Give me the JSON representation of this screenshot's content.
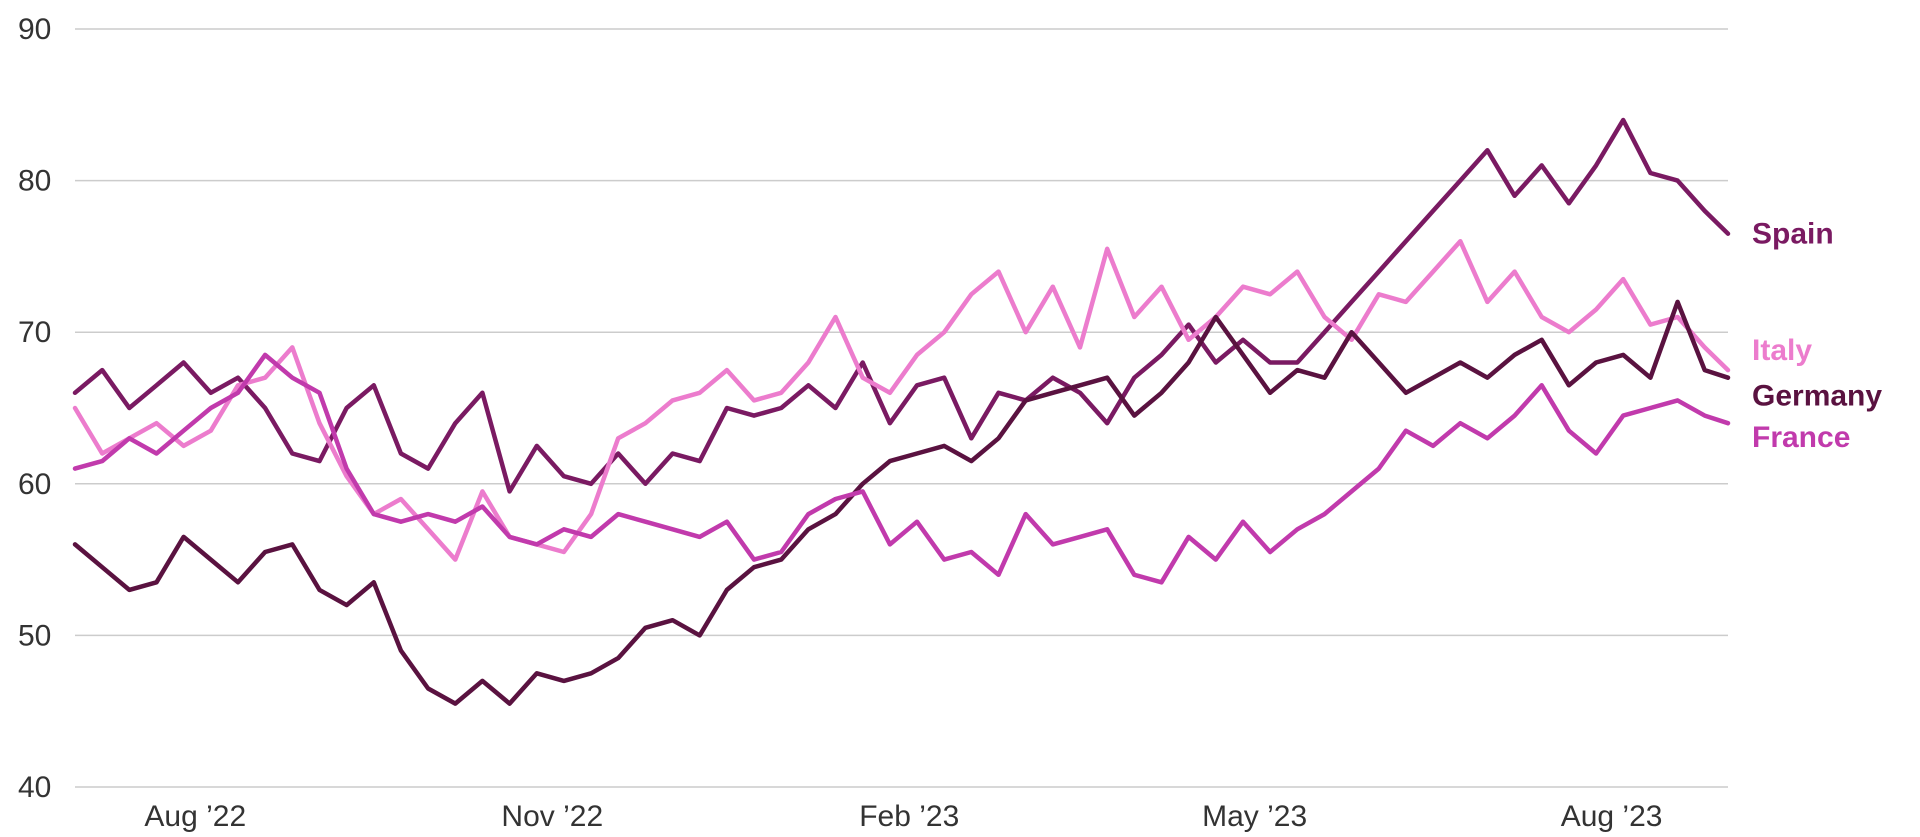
{
  "chart_data": {
    "type": "line",
    "title": "",
    "xlabel": "",
    "ylabel": "",
    "ylim": [
      40,
      90
    ],
    "yticks": [
      "40",
      "50",
      "60",
      "70",
      "80",
      "90"
    ],
    "xticks": [
      {
        "label": "Aug ’22",
        "x": "2022-08-01"
      },
      {
        "label": "Nov ’22",
        "x": "2022-11-01"
      },
      {
        "label": "Feb ’23",
        "x": "2023-02-01"
      },
      {
        "label": "May ’23",
        "x": "2023-05-01"
      },
      {
        "label": "Aug ’23",
        "x": "2023-08-01"
      }
    ],
    "xlim": [
      "2022-07-01",
      "2023-08-31"
    ],
    "grid": true,
    "legend": "direct labels at line ends (right)",
    "series": [
      {
        "name": "Spain",
        "color": "#7a1a62",
        "points": [
          [
            "2022-07-01",
            66
          ],
          [
            "2022-07-08",
            67.5
          ],
          [
            "2022-07-15",
            65
          ],
          [
            "2022-07-22",
            66.5
          ],
          [
            "2022-07-29",
            68
          ],
          [
            "2022-08-05",
            66
          ],
          [
            "2022-08-12",
            67
          ],
          [
            "2022-08-19",
            65
          ],
          [
            "2022-08-26",
            62
          ],
          [
            "2022-09-02",
            61.5
          ],
          [
            "2022-09-09",
            65
          ],
          [
            "2022-09-16",
            66.5
          ],
          [
            "2022-09-23",
            62
          ],
          [
            "2022-09-30",
            61
          ],
          [
            "2022-10-07",
            64
          ],
          [
            "2022-10-14",
            66
          ],
          [
            "2022-10-21",
            59.5
          ],
          [
            "2022-10-28",
            62.5
          ],
          [
            "2022-11-04",
            60.5
          ],
          [
            "2022-11-11",
            60
          ],
          [
            "2022-11-18",
            62
          ],
          [
            "2022-11-25",
            60
          ],
          [
            "2022-12-02",
            62
          ],
          [
            "2022-12-09",
            61.5
          ],
          [
            "2022-12-16",
            65
          ],
          [
            "2022-12-23",
            64.5
          ],
          [
            "2022-12-30",
            65
          ],
          [
            "2023-01-06",
            66.5
          ],
          [
            "2023-01-13",
            65
          ],
          [
            "2023-01-20",
            68
          ],
          [
            "2023-01-27",
            64
          ],
          [
            "2023-02-03",
            66.5
          ],
          [
            "2023-02-10",
            67
          ],
          [
            "2023-02-17",
            63
          ],
          [
            "2023-02-24",
            66
          ],
          [
            "2023-03-03",
            65.5
          ],
          [
            "2023-03-10",
            67
          ],
          [
            "2023-03-17",
            66
          ],
          [
            "2023-03-24",
            64
          ],
          [
            "2023-03-31",
            67
          ],
          [
            "2023-04-07",
            68.5
          ],
          [
            "2023-04-14",
            70.5
          ],
          [
            "2023-04-21",
            68
          ],
          [
            "2023-04-28",
            69.5
          ],
          [
            "2023-05-05",
            68
          ],
          [
            "2023-05-12",
            68
          ],
          [
            "2023-05-19",
            70
          ],
          [
            "2023-05-26",
            72
          ],
          [
            "2023-06-02",
            74
          ],
          [
            "2023-06-09",
            76
          ],
          [
            "2023-06-16",
            78
          ],
          [
            "2023-06-23",
            80
          ],
          [
            "2023-06-30",
            82
          ],
          [
            "2023-07-07",
            79
          ],
          [
            "2023-07-14",
            81
          ],
          [
            "2023-07-21",
            78.5
          ],
          [
            "2023-07-28",
            81
          ],
          [
            "2023-08-04",
            84
          ],
          [
            "2023-08-11",
            80.5
          ],
          [
            "2023-08-18",
            80
          ],
          [
            "2023-08-25",
            78
          ],
          [
            "2023-08-31",
            76.5
          ]
        ]
      },
      {
        "name": "Italy",
        "color": "#ec7ccd",
        "points": [
          [
            "2022-07-01",
            65
          ],
          [
            "2022-07-08",
            62
          ],
          [
            "2022-07-15",
            63
          ],
          [
            "2022-07-22",
            64
          ],
          [
            "2022-07-29",
            62.5
          ],
          [
            "2022-08-05",
            63.5
          ],
          [
            "2022-08-12",
            66.5
          ],
          [
            "2022-08-19",
            67
          ],
          [
            "2022-08-26",
            69
          ],
          [
            "2022-09-02",
            64
          ],
          [
            "2022-09-09",
            60.5
          ],
          [
            "2022-09-16",
            58
          ],
          [
            "2022-09-23",
            59
          ],
          [
            "2022-09-30",
            57
          ],
          [
            "2022-10-07",
            55
          ],
          [
            "2022-10-14",
            59.5
          ],
          [
            "2022-10-21",
            56.5
          ],
          [
            "2022-10-28",
            56
          ],
          [
            "2022-11-04",
            55.5
          ],
          [
            "2022-11-11",
            58
          ],
          [
            "2022-11-18",
            63
          ],
          [
            "2022-11-25",
            64
          ],
          [
            "2022-12-02",
            65.5
          ],
          [
            "2022-12-09",
            66
          ],
          [
            "2022-12-16",
            67.5
          ],
          [
            "2022-12-23",
            65.5
          ],
          [
            "2022-12-30",
            66
          ],
          [
            "2023-01-06",
            68
          ],
          [
            "2023-01-13",
            71
          ],
          [
            "2023-01-20",
            67
          ],
          [
            "2023-01-27",
            66
          ],
          [
            "2023-02-03",
            68.5
          ],
          [
            "2023-02-10",
            70
          ],
          [
            "2023-02-17",
            72.5
          ],
          [
            "2023-02-24",
            74
          ],
          [
            "2023-03-03",
            70
          ],
          [
            "2023-03-10",
            73
          ],
          [
            "2023-03-17",
            69
          ],
          [
            "2023-03-24",
            75.5
          ],
          [
            "2023-03-31",
            71
          ],
          [
            "2023-04-07",
            73
          ],
          [
            "2023-04-14",
            69.5
          ],
          [
            "2023-04-21",
            71
          ],
          [
            "2023-04-28",
            73
          ],
          [
            "2023-05-05",
            72.5
          ],
          [
            "2023-05-12",
            74
          ],
          [
            "2023-05-19",
            71
          ],
          [
            "2023-05-26",
            69.5
          ],
          [
            "2023-06-02",
            72.5
          ],
          [
            "2023-06-09",
            72
          ],
          [
            "2023-06-16",
            74
          ],
          [
            "2023-06-23",
            76
          ],
          [
            "2023-06-30",
            72
          ],
          [
            "2023-07-07",
            74
          ],
          [
            "2023-07-14",
            71
          ],
          [
            "2023-07-21",
            70
          ],
          [
            "2023-07-28",
            71.5
          ],
          [
            "2023-08-04",
            73.5
          ],
          [
            "2023-08-11",
            70.5
          ],
          [
            "2023-08-18",
            71
          ],
          [
            "2023-08-25",
            69
          ],
          [
            "2023-08-31",
            67.5
          ]
        ]
      },
      {
        "name": "Germany",
        "color": "#5a1240",
        "points": [
          [
            "2022-07-01",
            56
          ],
          [
            "2022-07-08",
            54.5
          ],
          [
            "2022-07-15",
            53
          ],
          [
            "2022-07-22",
            53.5
          ],
          [
            "2022-07-29",
            56.5
          ],
          [
            "2022-08-05",
            55
          ],
          [
            "2022-08-12",
            53.5
          ],
          [
            "2022-08-19",
            55.5
          ],
          [
            "2022-08-26",
            56
          ],
          [
            "2022-09-02",
            53
          ],
          [
            "2022-09-09",
            52
          ],
          [
            "2022-09-16",
            53.5
          ],
          [
            "2022-09-23",
            49
          ],
          [
            "2022-09-30",
            46.5
          ],
          [
            "2022-10-07",
            45.5
          ],
          [
            "2022-10-14",
            47
          ],
          [
            "2022-10-21",
            45.5
          ],
          [
            "2022-10-28",
            47.5
          ],
          [
            "2022-11-04",
            47
          ],
          [
            "2022-11-11",
            47.5
          ],
          [
            "2022-11-18",
            48.5
          ],
          [
            "2022-11-25",
            50.5
          ],
          [
            "2022-12-02",
            51
          ],
          [
            "2022-12-09",
            50
          ],
          [
            "2022-12-16",
            53
          ],
          [
            "2022-12-23",
            54.5
          ],
          [
            "2022-12-30",
            55
          ],
          [
            "2023-01-06",
            57
          ],
          [
            "2023-01-13",
            58
          ],
          [
            "2023-01-20",
            60
          ],
          [
            "2023-01-27",
            61.5
          ],
          [
            "2023-02-03",
            62
          ],
          [
            "2023-02-10",
            62.5
          ],
          [
            "2023-02-17",
            61.5
          ],
          [
            "2023-02-24",
            63
          ],
          [
            "2023-03-03",
            65.5
          ],
          [
            "2023-03-10",
            66
          ],
          [
            "2023-03-17",
            66.5
          ],
          [
            "2023-03-24",
            67
          ],
          [
            "2023-03-31",
            64.5
          ],
          [
            "2023-04-07",
            66
          ],
          [
            "2023-04-14",
            68
          ],
          [
            "2023-04-21",
            71
          ],
          [
            "2023-04-28",
            68.5
          ],
          [
            "2023-05-05",
            66
          ],
          [
            "2023-05-12",
            67.5
          ],
          [
            "2023-05-19",
            67
          ],
          [
            "2023-05-26",
            70
          ],
          [
            "2023-06-02",
            68
          ],
          [
            "2023-06-09",
            66
          ],
          [
            "2023-06-16",
            67
          ],
          [
            "2023-06-23",
            68
          ],
          [
            "2023-06-30",
            67
          ],
          [
            "2023-07-07",
            68.5
          ],
          [
            "2023-07-14",
            69.5
          ],
          [
            "2023-07-21",
            66.5
          ],
          [
            "2023-07-28",
            68
          ],
          [
            "2023-08-04",
            68.5
          ],
          [
            "2023-08-11",
            67
          ],
          [
            "2023-08-18",
            72
          ],
          [
            "2023-08-25",
            67.5
          ],
          [
            "2023-08-31",
            67
          ]
        ]
      },
      {
        "name": "France",
        "color": "#c13aac",
        "points": [
          [
            "2022-07-01",
            61
          ],
          [
            "2022-07-08",
            61.5
          ],
          [
            "2022-07-15",
            63
          ],
          [
            "2022-07-22",
            62
          ],
          [
            "2022-07-29",
            63.5
          ],
          [
            "2022-08-05",
            65
          ],
          [
            "2022-08-12",
            66
          ],
          [
            "2022-08-19",
            68.5
          ],
          [
            "2022-08-26",
            67
          ],
          [
            "2022-09-02",
            66
          ],
          [
            "2022-09-09",
            61
          ],
          [
            "2022-09-16",
            58
          ],
          [
            "2022-09-23",
            57.5
          ],
          [
            "2022-09-30",
            58
          ],
          [
            "2022-10-07",
            57.5
          ],
          [
            "2022-10-14",
            58.5
          ],
          [
            "2022-10-21",
            56.5
          ],
          [
            "2022-10-28",
            56
          ],
          [
            "2022-11-04",
            57
          ],
          [
            "2022-11-11",
            56.5
          ],
          [
            "2022-11-18",
            58
          ],
          [
            "2022-11-25",
            57.5
          ],
          [
            "2022-12-02",
            57
          ],
          [
            "2022-12-09",
            56.5
          ],
          [
            "2022-12-16",
            57.5
          ],
          [
            "2022-12-23",
            55
          ],
          [
            "2022-12-30",
            55.5
          ],
          [
            "2023-01-06",
            58
          ],
          [
            "2023-01-13",
            59
          ],
          [
            "2023-01-20",
            59.5
          ],
          [
            "2023-01-27",
            56
          ],
          [
            "2023-02-03",
            57.5
          ],
          [
            "2023-02-10",
            55
          ],
          [
            "2023-02-17",
            55.5
          ],
          [
            "2023-02-24",
            54
          ],
          [
            "2023-03-03",
            58
          ],
          [
            "2023-03-10",
            56
          ],
          [
            "2023-03-17",
            56.5
          ],
          [
            "2023-03-24",
            57
          ],
          [
            "2023-03-31",
            54
          ],
          [
            "2023-04-07",
            53.5
          ],
          [
            "2023-04-14",
            56.5
          ],
          [
            "2023-04-21",
            55
          ],
          [
            "2023-04-28",
            57.5
          ],
          [
            "2023-05-05",
            55.5
          ],
          [
            "2023-05-12",
            57
          ],
          [
            "2023-05-19",
            58
          ],
          [
            "2023-05-26",
            59.5
          ],
          [
            "2023-06-02",
            61
          ],
          [
            "2023-06-09",
            63.5
          ],
          [
            "2023-06-16",
            62.5
          ],
          [
            "2023-06-23",
            64
          ],
          [
            "2023-06-30",
            63
          ],
          [
            "2023-07-07",
            64.5
          ],
          [
            "2023-07-14",
            66.5
          ],
          [
            "2023-07-21",
            63.5
          ],
          [
            "2023-07-28",
            62
          ],
          [
            "2023-08-04",
            64.5
          ],
          [
            "2023-08-11",
            65
          ],
          [
            "2023-08-18",
            65.5
          ],
          [
            "2023-08-25",
            64.5
          ],
          [
            "2023-08-31",
            64
          ]
        ]
      }
    ]
  }
}
